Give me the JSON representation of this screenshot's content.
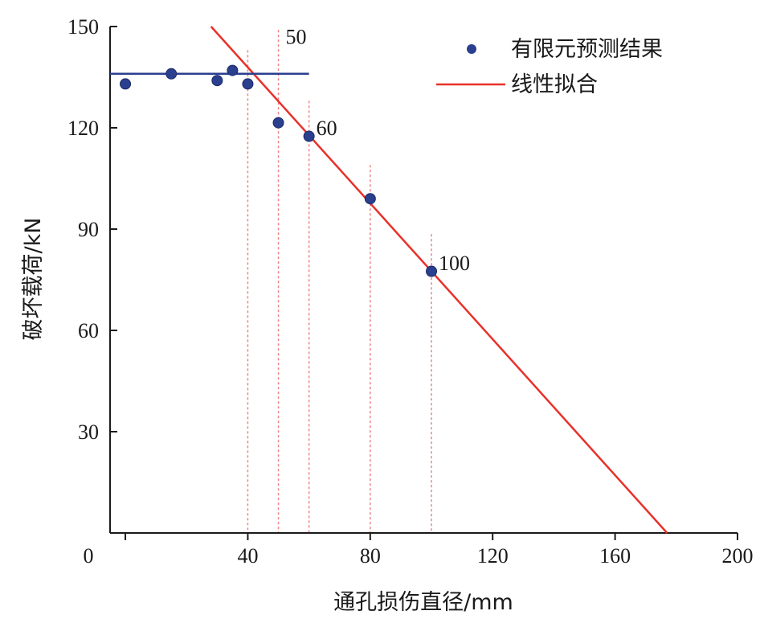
{
  "chart_data": {
    "type": "scatter",
    "xlabel": "通孔损伤直径/mm",
    "ylabel": "破坏载荷/kN",
    "xlim": [
      -5,
      200
    ],
    "ylim": [
      0,
      150
    ],
    "x_ticks": [
      0,
      40,
      80,
      120,
      160,
      200
    ],
    "y_ticks": [
      0,
      30,
      60,
      90,
      120,
      150
    ],
    "grid": false,
    "legend_position": "top-right",
    "series": [
      {
        "name": "有限元预测结果",
        "kind": "scatter",
        "color": "#2b3f8f",
        "points": [
          {
            "x": 0,
            "y": 133
          },
          {
            "x": 15,
            "y": 136
          },
          {
            "x": 30,
            "y": 134
          },
          {
            "x": 35,
            "y": 137
          },
          {
            "x": 40,
            "y": 133
          },
          {
            "x": 50,
            "y": 121.5
          },
          {
            "x": 60,
            "y": 117.5
          },
          {
            "x": 80,
            "y": 99
          },
          {
            "x": 100,
            "y": 77.5
          }
        ]
      },
      {
        "name": "线性拟合",
        "kind": "line",
        "color": "#e8312a",
        "points": [
          {
            "x": 28,
            "y": 150
          },
          {
            "x": 177,
            "y": 0
          }
        ]
      },
      {
        "name": "",
        "kind": "line",
        "color": "#2b3f8f",
        "points": [
          {
            "x": -5,
            "y": 136
          },
          {
            "x": 60,
            "y": 136
          }
        ]
      }
    ],
    "reference_lines": [
      {
        "x": 40,
        "y_top": 143
      },
      {
        "x": 50,
        "y_top": 149
      },
      {
        "x": 60,
        "y_top": 128
      },
      {
        "x": 80,
        "y_top": 109
      },
      {
        "x": 100,
        "y_top": 88.5
      }
    ],
    "annotations": [
      {
        "text": "50",
        "x": 50,
        "y": 147
      },
      {
        "text": "60",
        "x": 60,
        "y": 120
      },
      {
        "text": "100",
        "x": 100,
        "y": 80
      }
    ]
  }
}
